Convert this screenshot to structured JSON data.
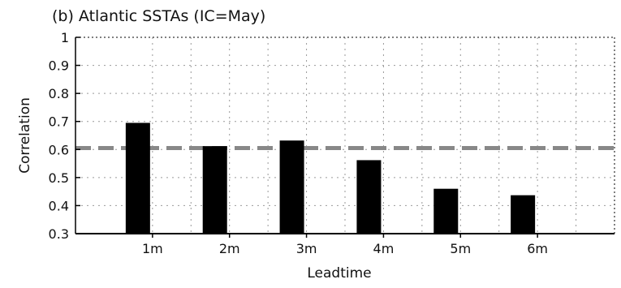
{
  "chart_data": {
    "type": "bar",
    "title": "(b) Atlantic SSTAs (IC=May)",
    "xlabel": "Leadtime",
    "ylabel": "Correlation",
    "categories": [
      "1m",
      "2m",
      "3m",
      "4m",
      "5m",
      "6m"
    ],
    "values": [
      0.695,
      0.612,
      0.632,
      0.562,
      0.46,
      0.437
    ],
    "ylim": [
      0.3,
      1
    ],
    "yticks": [
      "0.3",
      "0.4",
      "0.5",
      "0.6",
      "0.7",
      "0.8",
      "0.9",
      "1"
    ],
    "reference_line": 0.605,
    "grid": true,
    "colors": {
      "bar": "#000000",
      "reference_line": "#888888",
      "grid": "#999999",
      "axis": "#000000"
    }
  }
}
